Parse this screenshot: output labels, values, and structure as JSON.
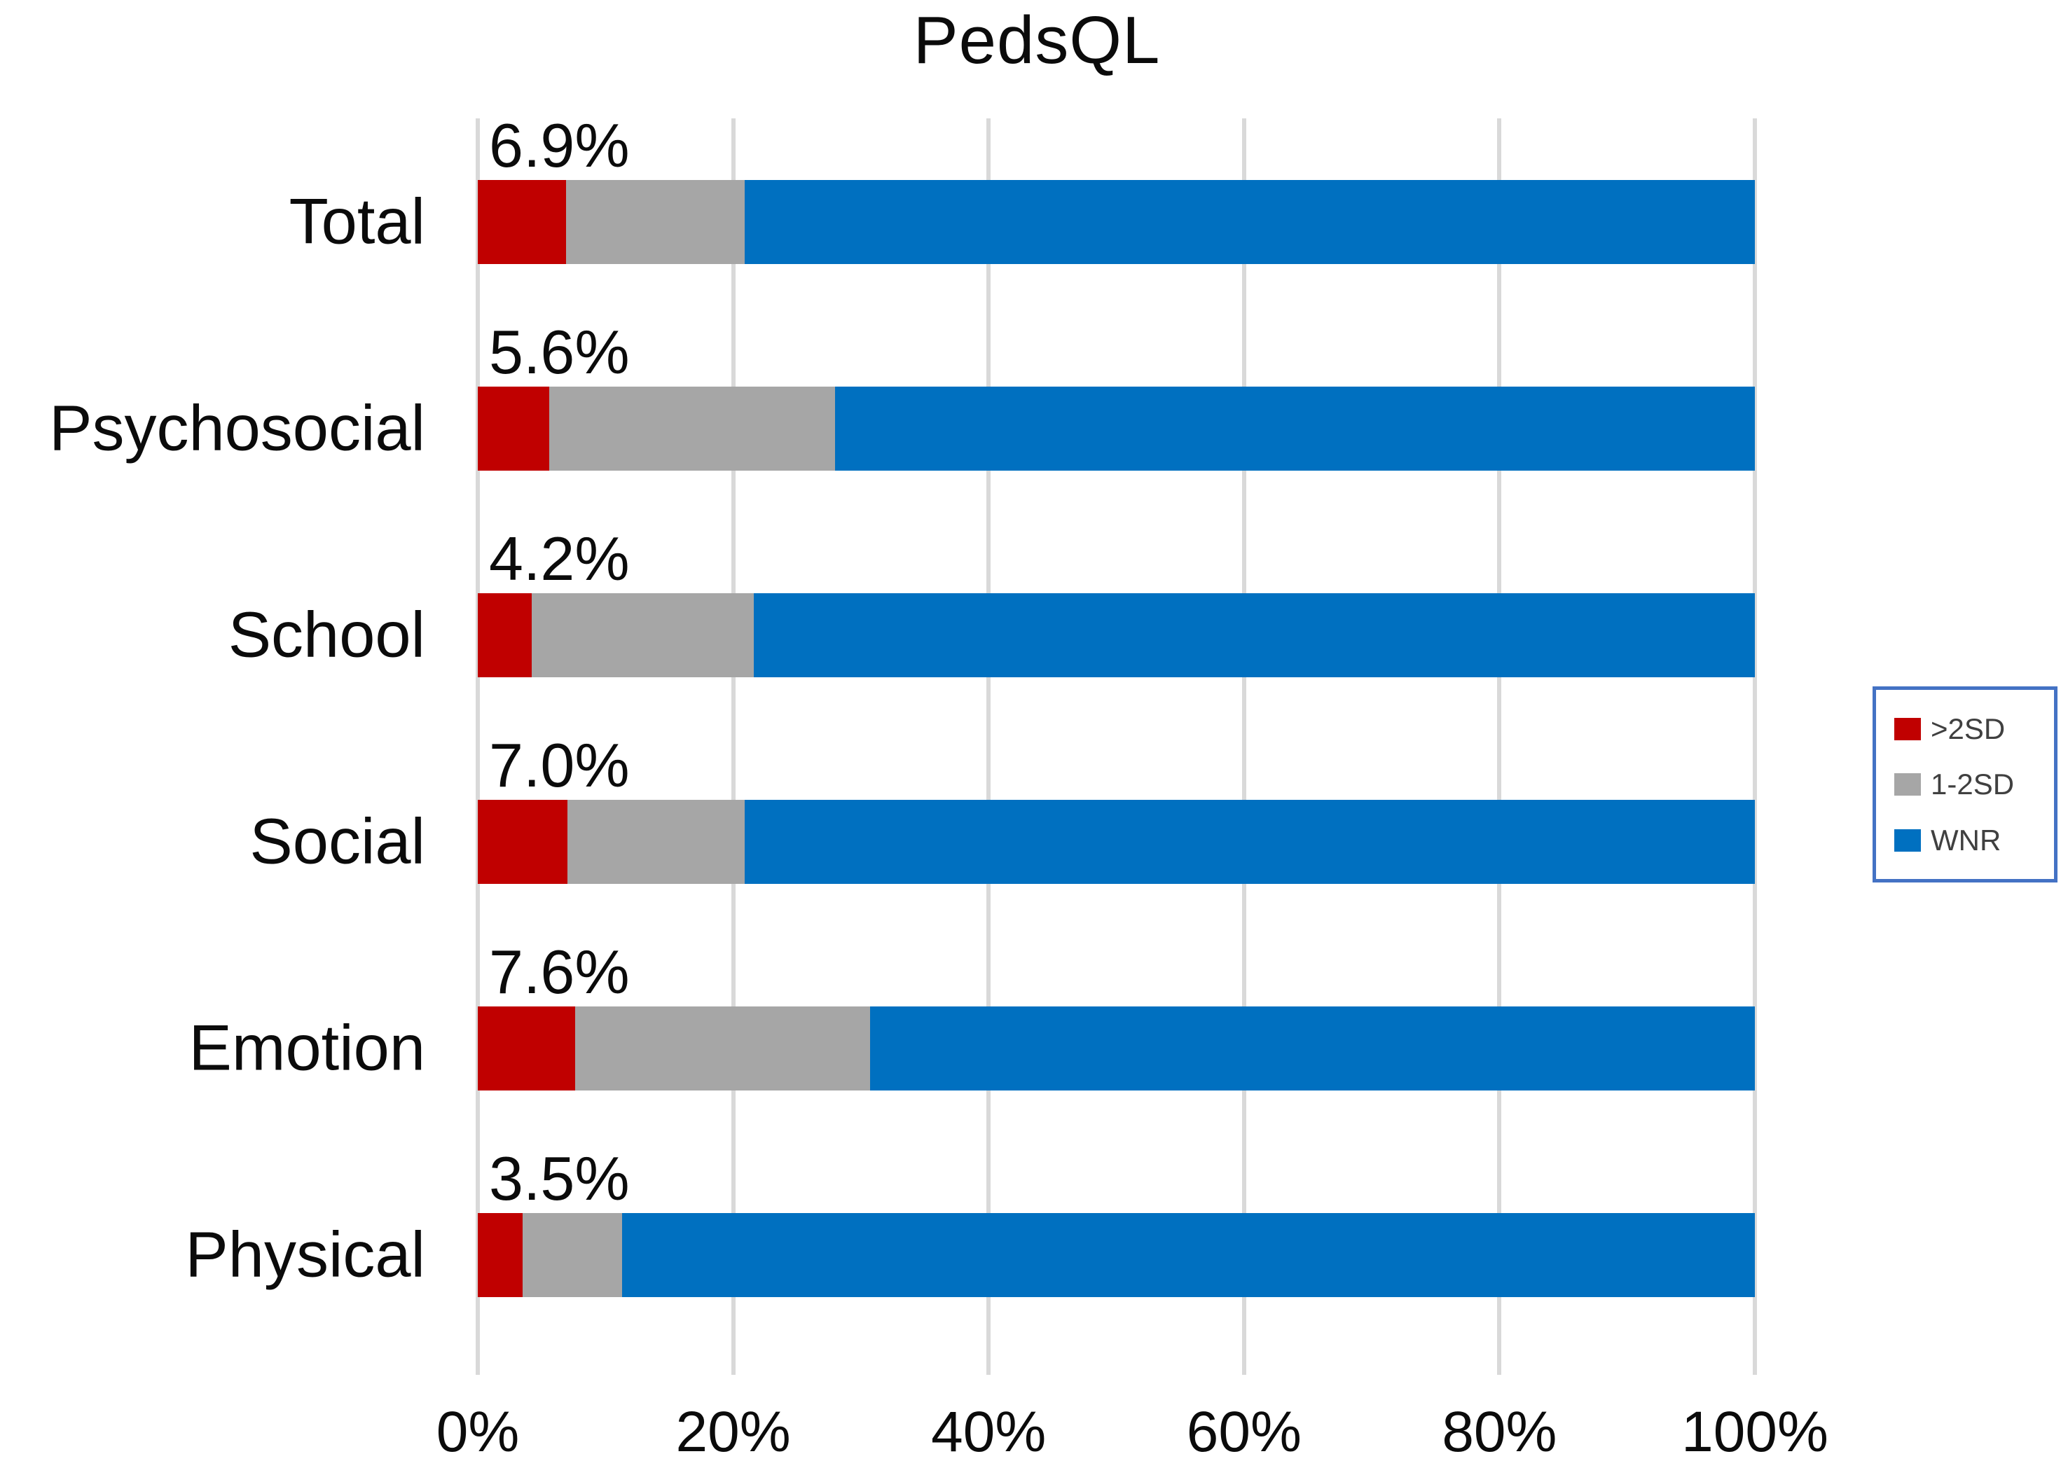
{
  "chart_data": {
    "type": "bar",
    "orientation": "horizontal",
    "stacked": true,
    "title": "PedsQL",
    "categories": [
      "Total",
      "Psychosocial",
      "School",
      "Social",
      "Emotion",
      "Physical"
    ],
    "series": [
      {
        "name": ">2SD",
        "color": "#C00000",
        "values": [
          6.9,
          5.6,
          4.2,
          7.0,
          7.6,
          3.5
        ]
      },
      {
        "name": "1-2SD",
        "color": "#A6A6A6",
        "values": [
          14.0,
          22.4,
          17.4,
          13.9,
          23.1,
          7.8
        ]
      },
      {
        "name": "WNR",
        "color": "#0070C0",
        "values": [
          79.1,
          72.0,
          78.4,
          79.1,
          69.3,
          88.7
        ]
      }
    ],
    "bar_labels": [
      "6.9%",
      "5.6%",
      "4.2%",
      "7.0%",
      "7.6%",
      "3.5%"
    ],
    "xlabel": "",
    "ylabel": "",
    "x_axis": {
      "range": [
        0,
        100
      ],
      "tick_step": 20,
      "tick_labels": [
        "0%",
        "20%",
        "40%",
        "60%",
        "80%",
        "100%"
      ]
    },
    "grid": "vertical",
    "gridline_color": "#D9D9D9",
    "legend": {
      "position": "right",
      "border_color": "#4472C4",
      "entries": [
        {
          "label": ">2SD",
          "color": "#C00000"
        },
        {
          "label": "1-2SD",
          "color": "#A6A6A6"
        },
        {
          "label": "WNR",
          "color": "#0070C0"
        }
      ]
    }
  }
}
